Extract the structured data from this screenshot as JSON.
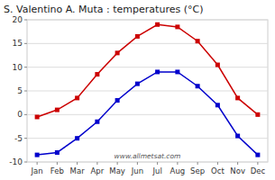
{
  "chart_data": {
    "type": "line",
    "title": "S. Valentino A. Muta : temperatures (°C)",
    "categories": [
      "Jan",
      "Feb",
      "Mar",
      "Apr",
      "May",
      "Jun",
      "Jul",
      "Aug",
      "Sep",
      "Oct",
      "Nov",
      "Dec"
    ],
    "series": [
      {
        "color": "#cc0000",
        "marker": "square",
        "values": [
          -0.5,
          1.0,
          3.5,
          8.5,
          13.0,
          16.5,
          19.0,
          18.5,
          15.5,
          10.5,
          3.5,
          0.0
        ]
      },
      {
        "color": "#0000cc",
        "marker": "square",
        "values": [
          -8.5,
          -8.0,
          -5.0,
          -1.5,
          3.0,
          6.5,
          9.0,
          9.0,
          6.0,
          2.0,
          -4.5,
          -8.5
        ]
      }
    ],
    "ylim": [
      -10,
      20
    ],
    "yticks": [
      -10,
      -5,
      0,
      5,
      10,
      15,
      20
    ],
    "grid": true,
    "annotations": [
      "www.allmetsat.com"
    ]
  }
}
